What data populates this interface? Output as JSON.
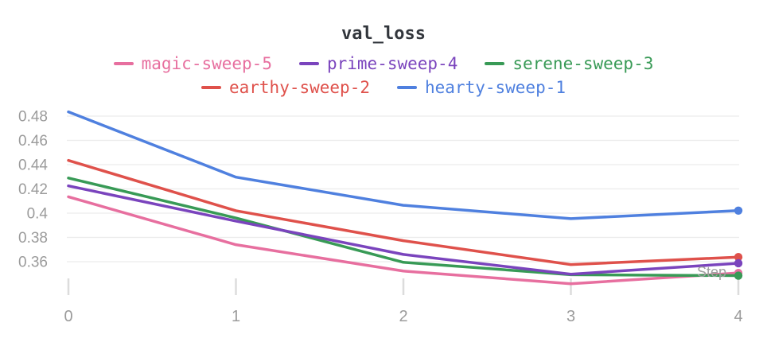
{
  "header": {
    "title": "val_loss"
  },
  "chart_data": {
    "type": "line",
    "title": "val_loss",
    "xlabel": "Step",
    "ylabel": "",
    "x": [
      0,
      1,
      2,
      3,
      4
    ],
    "xtick_labels": [
      "0",
      "1",
      "2",
      "3",
      "4"
    ],
    "yticks": [
      0.36,
      0.38,
      0.4,
      0.42,
      0.44,
      0.46,
      0.48
    ],
    "ylim": [
      0.345,
      0.4905
    ],
    "xlim": [
      0,
      4
    ],
    "grid": "horizontal",
    "legend_position": "top",
    "end_markers": true,
    "series": [
      {
        "name": "magic-sweep-5",
        "color": "#e76f9f",
        "values": [
          0.4135,
          0.374,
          0.3523,
          0.3418,
          0.3507
        ]
      },
      {
        "name": "prime-sweep-4",
        "color": "#7a44bd",
        "values": [
          0.4225,
          0.3935,
          0.366,
          0.3497,
          0.3587
        ]
      },
      {
        "name": "serene-sweep-3",
        "color": "#389a56",
        "values": [
          0.429,
          0.396,
          0.3595,
          0.3493,
          0.3485
        ]
      },
      {
        "name": "earthy-sweep-2",
        "color": "#df514b",
        "values": [
          0.4435,
          0.402,
          0.3773,
          0.3576,
          0.3638
        ]
      },
      {
        "name": "hearty-sweep-1",
        "color": "#4f80df",
        "values": [
          0.4835,
          0.4297,
          0.4065,
          0.3955,
          0.4021
        ]
      }
    ],
    "colors": {
      "grid": "#ececec",
      "tick_mark": "#dcdcdc",
      "tick_label": "#9b9b9b",
      "step_label": "#a0a0a0",
      "title": "#32363c"
    }
  }
}
